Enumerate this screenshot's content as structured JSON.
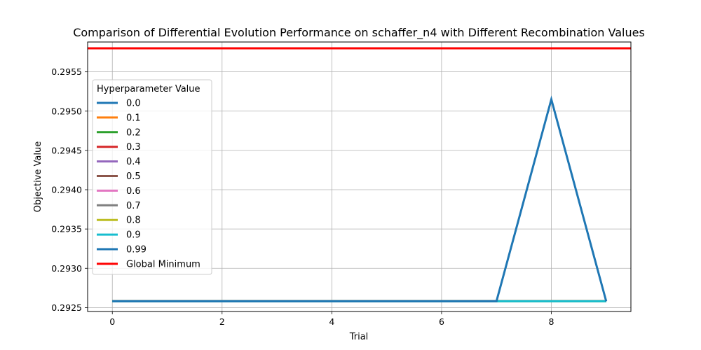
{
  "chart_data": {
    "type": "line",
    "title": "Comparison of Differential Evolution Performance on schaffer_n4 with Different Recombination Values",
    "xlabel": "Trial",
    "ylabel": "Objective Value",
    "xlim": [
      -0.45,
      9.45
    ],
    "ylim": [
      0.29245,
      0.29588
    ],
    "x_ticks": [
      0,
      2,
      4,
      6,
      8
    ],
    "x_tick_labels": [
      "0",
      "2",
      "4",
      "6",
      "8"
    ],
    "y_ticks": [
      0.2925,
      0.293,
      0.2935,
      0.294,
      0.2945,
      0.295,
      0.2955
    ],
    "y_tick_labels": [
      "0.2925",
      "0.2930",
      "0.2935",
      "0.2940",
      "0.2945",
      "0.2950",
      "0.2955"
    ],
    "grid": true,
    "legend_title": "Hyperparameter Value",
    "legend_position": "center-left",
    "x": [
      0,
      1,
      2,
      3,
      4,
      5,
      6,
      7,
      8,
      9
    ],
    "series": [
      {
        "name": "0.0",
        "color": "#1f77b4",
        "values": [
          0.29258,
          0.29258,
          0.29258,
          0.29258,
          0.29258,
          0.29258,
          0.29258,
          0.29258,
          0.29258,
          0.29258
        ]
      },
      {
        "name": "0.1",
        "color": "#ff7f0e",
        "values": [
          0.29258,
          0.29258,
          0.29258,
          0.29258,
          0.29258,
          0.29258,
          0.29258,
          0.29258,
          0.29258,
          0.29258
        ]
      },
      {
        "name": "0.2",
        "color": "#2ca02c",
        "values": [
          0.29258,
          0.29258,
          0.29258,
          0.29258,
          0.29258,
          0.29258,
          0.29258,
          0.29258,
          0.29258,
          0.29258
        ]
      },
      {
        "name": "0.3",
        "color": "#d62728",
        "values": [
          0.29258,
          0.29258,
          0.29258,
          0.29258,
          0.29258,
          0.29258,
          0.29258,
          0.29258,
          0.29258,
          0.29258
        ]
      },
      {
        "name": "0.4",
        "color": "#9467bd",
        "values": [
          0.29258,
          0.29258,
          0.29258,
          0.29258,
          0.29258,
          0.29258,
          0.29258,
          0.29258,
          0.29258,
          0.29258
        ]
      },
      {
        "name": "0.5",
        "color": "#8c564b",
        "values": [
          0.29258,
          0.29258,
          0.29258,
          0.29258,
          0.29258,
          0.29258,
          0.29258,
          0.29258,
          0.29258,
          0.29258
        ]
      },
      {
        "name": "0.6",
        "color": "#e377c2",
        "values": [
          0.29258,
          0.29258,
          0.29258,
          0.29258,
          0.29258,
          0.29258,
          0.29258,
          0.29258,
          0.29258,
          0.29258
        ]
      },
      {
        "name": "0.7",
        "color": "#7f7f7f",
        "values": [
          0.29258,
          0.29258,
          0.29258,
          0.29258,
          0.29258,
          0.29258,
          0.29258,
          0.29258,
          0.29258,
          0.29258
        ]
      },
      {
        "name": "0.8",
        "color": "#bcbd22",
        "values": [
          0.29258,
          0.29258,
          0.29258,
          0.29258,
          0.29258,
          0.29258,
          0.29258,
          0.29258,
          0.29258,
          0.29258
        ]
      },
      {
        "name": "0.9",
        "color": "#17becf",
        "values": [
          0.29258,
          0.29258,
          0.29258,
          0.29258,
          0.29258,
          0.29258,
          0.29258,
          0.29258,
          0.29258,
          0.29258
        ]
      },
      {
        "name": "0.99",
        "color": "#1f77b4",
        "values": [
          0.29258,
          0.29258,
          0.29258,
          0.29258,
          0.29258,
          0.29258,
          0.29258,
          0.29258,
          0.29515,
          0.29258
        ]
      }
    ],
    "global_minimum": {
      "name": "Global Minimum",
      "color": "#ff0000",
      "value": 0.2958
    }
  }
}
